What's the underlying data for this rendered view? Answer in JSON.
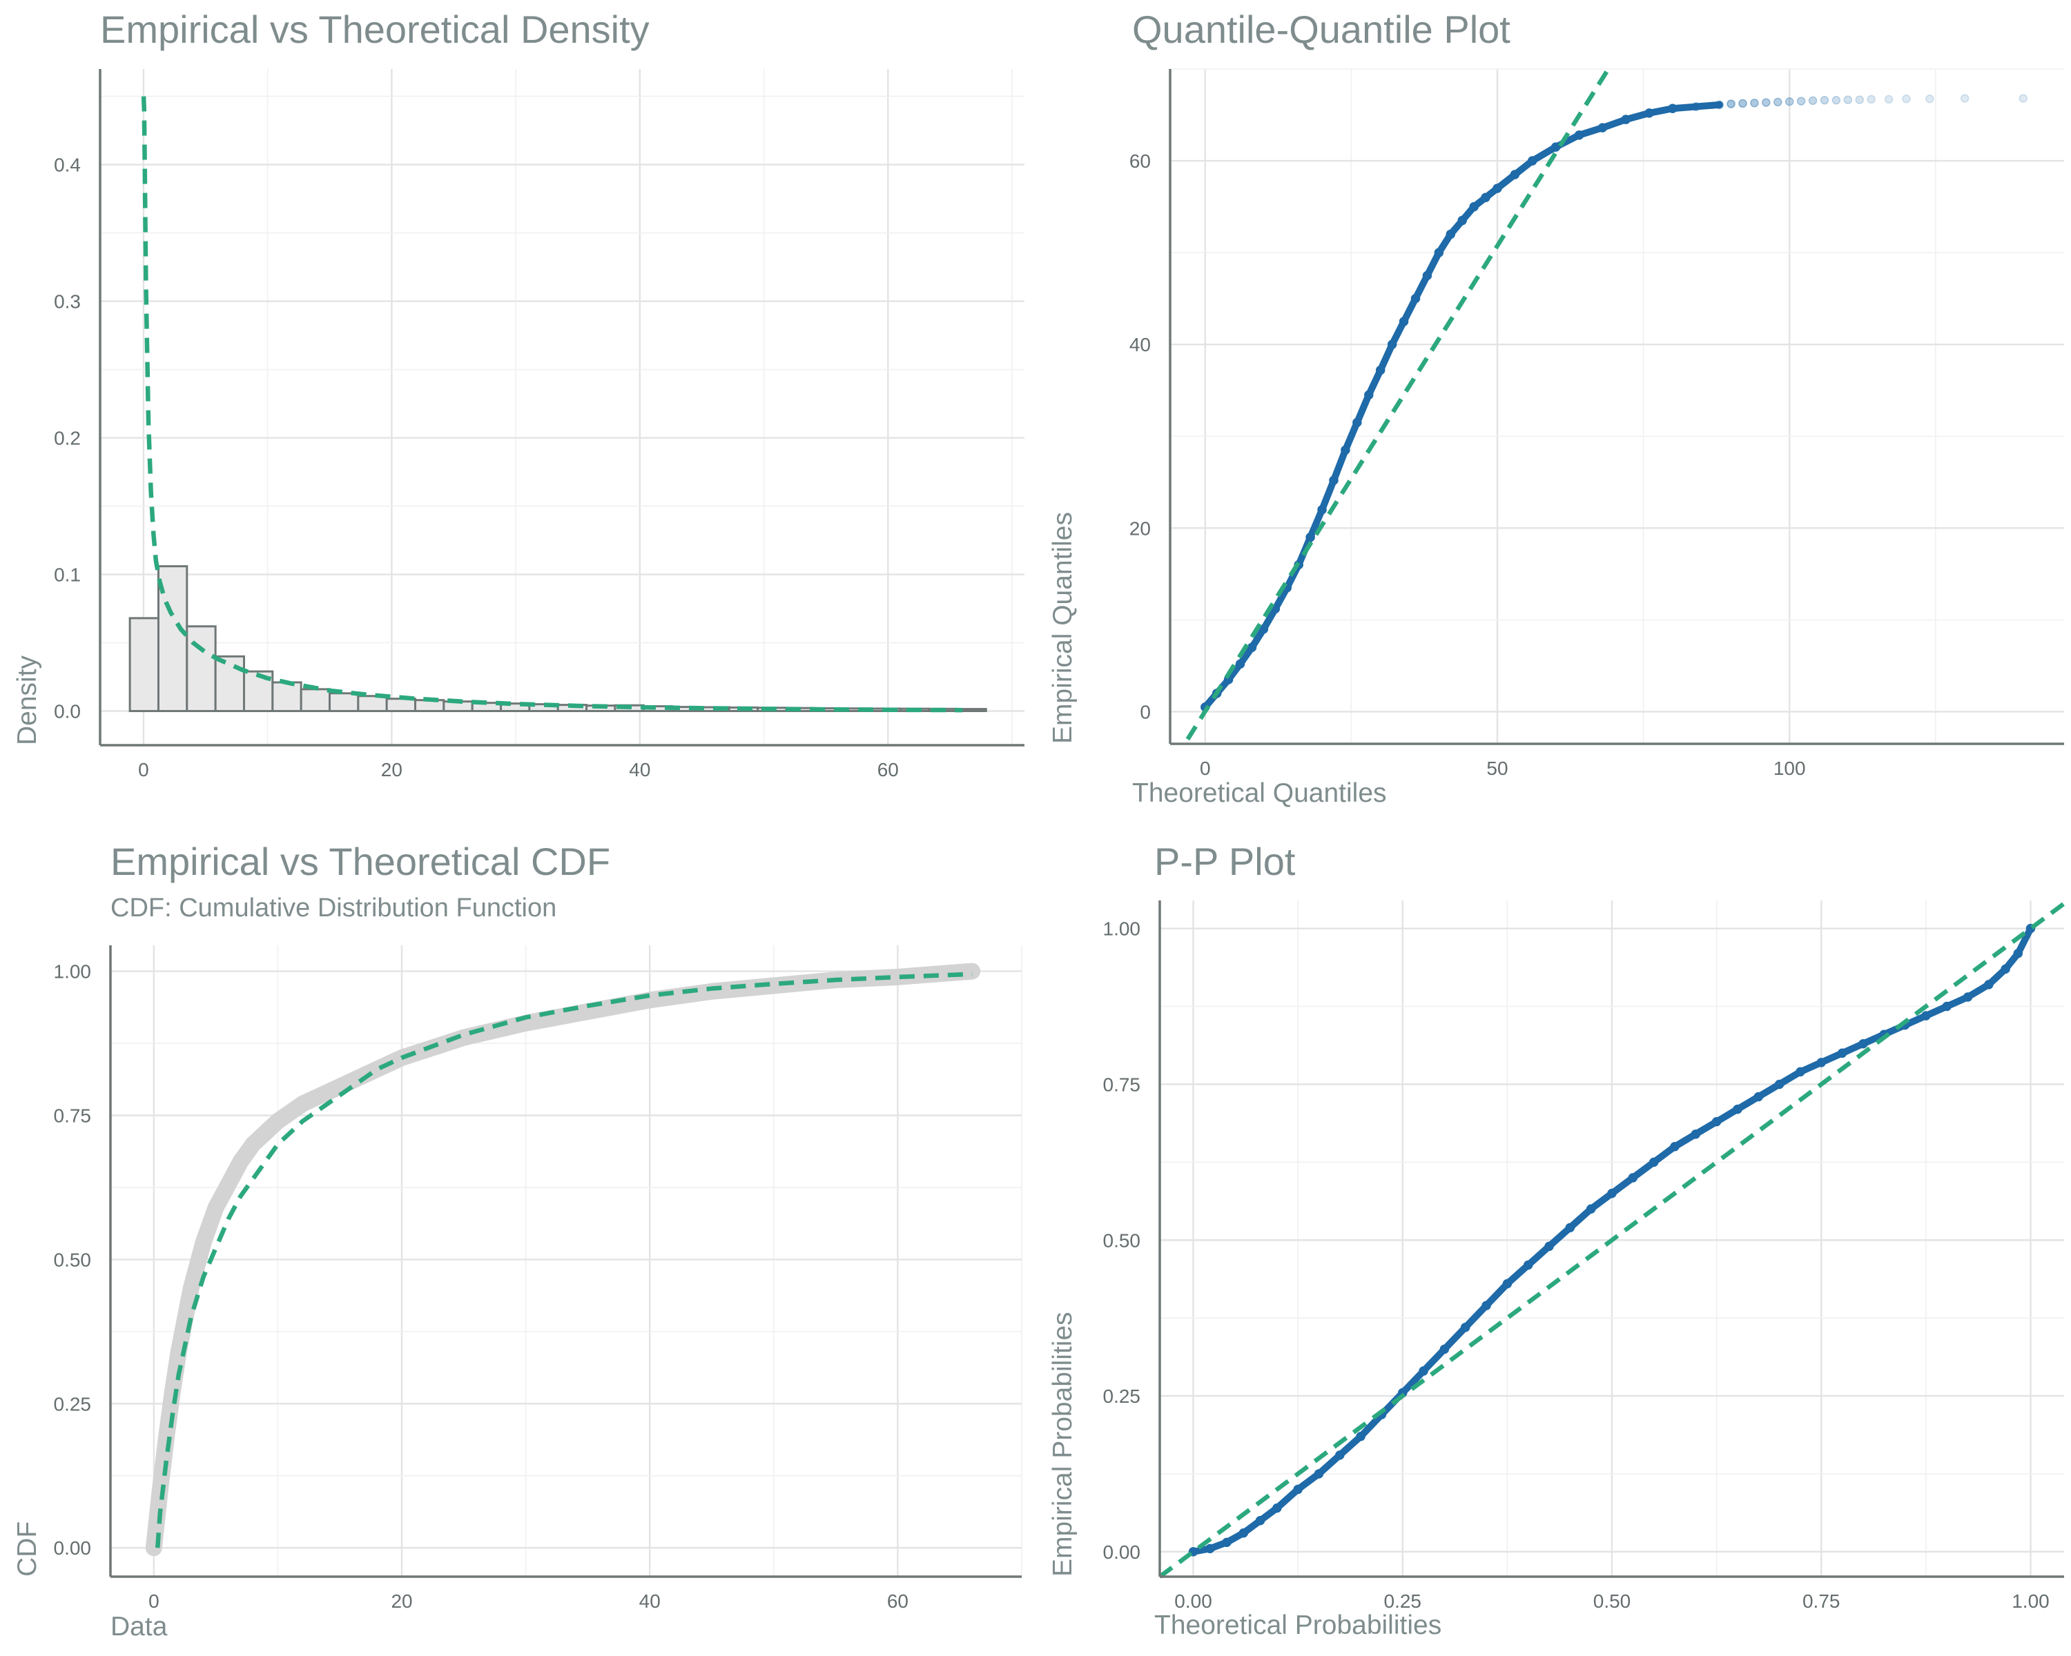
{
  "chart_data": [
    {
      "type": "bar",
      "title": "Empirical vs Theoretical Density",
      "subtitle": "",
      "xlabel": "",
      "ylabel": "Density",
      "xlim": [
        -3.5,
        71
      ],
      "ylim": [
        -0.025,
        0.47
      ],
      "x_ticks": [
        "0",
        "20",
        "40",
        "60"
      ],
      "y_ticks": [
        "0.0",
        "0.1",
        "0.2",
        "0.3",
        "0.4"
      ],
      "grid": true,
      "series": [
        {
          "kind": "histogram",
          "bin_width": 2.3,
          "x_start": -1.1,
          "values": [
            0.068,
            0.106,
            0.062,
            0.04,
            0.029,
            0.021,
            0.016,
            0.013,
            0.011,
            0.009,
            0.008,
            0.007,
            0.006,
            0.0055,
            0.005,
            0.0045,
            0.004,
            0.0042,
            0.0035,
            0.003,
            0.0028,
            0.0026,
            0.0024,
            0.0022,
            0.002,
            0.0019,
            0.0018,
            0.0017,
            0.0016,
            0.0015
          ]
        },
        {
          "kind": "theoretical-density",
          "style": "dashed",
          "color": "#2ca87f",
          "x": [
            0.01,
            0.05,
            0.1,
            0.2,
            0.4,
            0.6,
            0.8,
            1.0,
            1.3,
            1.7,
            2.2,
            3,
            4,
            5,
            6,
            8,
            10,
            12,
            15,
            18,
            22,
            26,
            30,
            35,
            40,
            45,
            50,
            55,
            60,
            66
          ],
          "y": [
            0.45,
            0.44,
            0.4,
            0.31,
            0.21,
            0.16,
            0.13,
            0.11,
            0.095,
            0.082,
            0.072,
            0.06,
            0.05,
            0.043,
            0.038,
            0.03,
            0.024,
            0.02,
            0.015,
            0.012,
            0.009,
            0.0068,
            0.0052,
            0.0038,
            0.0028,
            0.0021,
            0.0016,
            0.0012,
            0.0009,
            0.0007
          ]
        }
      ]
    },
    {
      "type": "scatter",
      "title": "Quantile-Quantile Plot",
      "subtitle": "",
      "xlabel": "Theoretical Quantiles",
      "ylabel": "Empirical Quantiles",
      "xlim": [
        -6,
        147
      ],
      "ylim": [
        -3.5,
        70
      ],
      "x_ticks": [
        "0",
        "50",
        "100"
      ],
      "y_ticks": [
        "0",
        "20",
        "40",
        "60"
      ],
      "grid": true,
      "series": [
        {
          "kind": "points",
          "color": "#1f6aa8",
          "x": [
            0,
            2,
            4,
            6,
            8,
            10,
            12,
            14,
            16,
            18,
            20,
            22,
            24,
            26,
            28,
            30,
            32,
            34,
            36,
            38,
            40,
            42,
            44,
            46,
            48,
            50,
            53,
            56,
            60,
            64,
            68,
            72,
            76,
            80,
            84,
            88,
            90,
            92,
            94,
            96,
            98,
            100,
            102,
            104,
            106,
            108,
            110,
            112,
            114,
            117,
            120,
            124,
            130,
            140
          ],
          "y": [
            0.5,
            2.0,
            3.5,
            5.2,
            7.0,
            9.0,
            11.2,
            13.5,
            16.0,
            19.0,
            22.0,
            25.2,
            28.5,
            31.5,
            34.5,
            37.2,
            40.0,
            42.5,
            45.0,
            47.5,
            50.0,
            52.0,
            53.5,
            55.0,
            56.0,
            57.0,
            58.5,
            60.0,
            61.5,
            62.8,
            63.6,
            64.5,
            65.2,
            65.7,
            65.9,
            66.1,
            66.2,
            66.25,
            66.3,
            66.35,
            66.4,
            66.45,
            66.5,
            66.55,
            66.6,
            66.6,
            66.65,
            66.65,
            66.7,
            66.7,
            66.75,
            66.75,
            66.8,
            66.8
          ]
        },
        {
          "kind": "reference-line",
          "style": "dashed",
          "color": "#2ca87f",
          "x": [
            -3,
            69
          ],
          "y": [
            -3,
            70
          ]
        }
      ]
    },
    {
      "type": "line",
      "title": "Empirical vs Theoretical CDF",
      "subtitle": "CDF: Cumulative Distribution Function",
      "xlabel": "Data",
      "ylabel": "CDF",
      "xlim": [
        -3.5,
        70
      ],
      "ylim": [
        -0.05,
        1.045
      ],
      "x_ticks": [
        "0",
        "20",
        "40",
        "60"
      ],
      "y_ticks": [
        "0.00",
        "0.25",
        "0.50",
        "0.75",
        "1.00"
      ],
      "grid": true,
      "series": [
        {
          "kind": "empirical-cdf",
          "color": "#d3d3d3",
          "x": [
            0,
            0.5,
            1,
            1.5,
            2,
            3,
            4,
            5,
            6,
            7,
            8,
            10,
            12,
            14,
            16,
            18,
            20,
            25,
            30,
            35,
            40,
            45,
            50,
            55,
            60,
            66
          ],
          "y": [
            0.0,
            0.1,
            0.19,
            0.27,
            0.34,
            0.45,
            0.53,
            0.59,
            0.63,
            0.67,
            0.7,
            0.74,
            0.77,
            0.79,
            0.81,
            0.83,
            0.85,
            0.885,
            0.91,
            0.93,
            0.95,
            0.965,
            0.975,
            0.985,
            0.99,
            1.0
          ]
        },
        {
          "kind": "theoretical-cdf",
          "style": "dashed",
          "color": "#2ca87f",
          "x": [
            0.3,
            0.5,
            1,
            1.5,
            2,
            3,
            4,
            5,
            6,
            7,
            8,
            10,
            12,
            14,
            16,
            18,
            20,
            25,
            30,
            35,
            40,
            45,
            50,
            55,
            60,
            66
          ],
          "y": [
            0.0,
            0.06,
            0.15,
            0.23,
            0.3,
            0.4,
            0.47,
            0.52,
            0.57,
            0.61,
            0.64,
            0.7,
            0.74,
            0.77,
            0.8,
            0.83,
            0.85,
            0.89,
            0.92,
            0.94,
            0.958,
            0.97,
            0.978,
            0.985,
            0.99,
            0.995
          ]
        }
      ]
    },
    {
      "type": "scatter",
      "title": "P-P Plot",
      "subtitle": "",
      "xlabel": "Theoretical Probabilities",
      "ylabel": "Empirical Probabilities",
      "xlim": [
        -0.04,
        1.04
      ],
      "ylim": [
        -0.04,
        1.045
      ],
      "x_ticks": [
        "0.00",
        "0.25",
        "0.50",
        "0.75",
        "1.00"
      ],
      "y_ticks": [
        "0.00",
        "0.25",
        "0.50",
        "0.75",
        "1.00"
      ],
      "grid": true,
      "series": [
        {
          "kind": "points",
          "color": "#1f6aa8",
          "x": [
            0.0,
            0.02,
            0.04,
            0.06,
            0.08,
            0.1,
            0.125,
            0.15,
            0.175,
            0.2,
            0.225,
            0.25,
            0.275,
            0.3,
            0.325,
            0.35,
            0.375,
            0.4,
            0.425,
            0.45,
            0.475,
            0.5,
            0.525,
            0.55,
            0.575,
            0.6,
            0.625,
            0.65,
            0.675,
            0.7,
            0.725,
            0.75,
            0.775,
            0.8,
            0.825,
            0.85,
            0.875,
            0.9,
            0.925,
            0.95,
            0.97,
            0.985,
            1.0
          ],
          "y": [
            0.0,
            0.005,
            0.015,
            0.03,
            0.05,
            0.07,
            0.1,
            0.125,
            0.155,
            0.185,
            0.22,
            0.255,
            0.29,
            0.325,
            0.36,
            0.395,
            0.43,
            0.46,
            0.49,
            0.52,
            0.55,
            0.575,
            0.6,
            0.625,
            0.65,
            0.67,
            0.69,
            0.71,
            0.73,
            0.75,
            0.77,
            0.785,
            0.8,
            0.815,
            0.83,
            0.845,
            0.86,
            0.875,
            0.89,
            0.91,
            0.935,
            0.96,
            1.0
          ]
        },
        {
          "kind": "reference-line",
          "style": "dashed",
          "color": "#2ca87f",
          "x": [
            -0.04,
            1.04
          ],
          "y": [
            -0.04,
            1.04
          ]
        }
      ]
    }
  ]
}
